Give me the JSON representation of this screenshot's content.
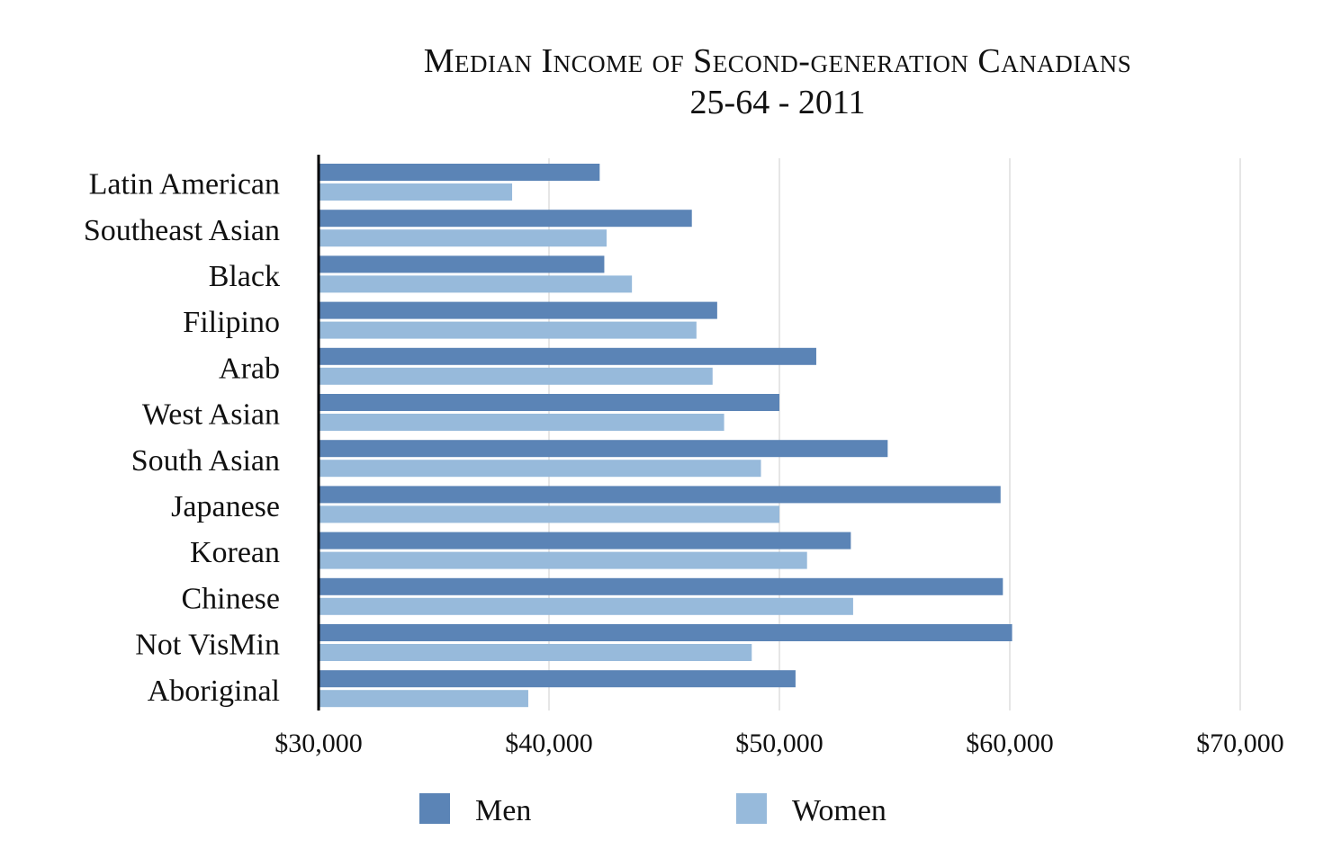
{
  "chart_data": {
    "type": "bar",
    "orientation": "horizontal",
    "title": "Median Income of Second-generation Canadians",
    "subtitle": "25-64 - 2011",
    "categories": [
      "Latin American",
      "Southeast Asian",
      "Black",
      "Filipino",
      "Arab",
      "West Asian",
      "South Asian",
      "Japanese",
      "Korean",
      "Chinese",
      "Not VisMin",
      "Aboriginal"
    ],
    "series": [
      {
        "name": "Men",
        "color": "#5b84b6",
        "values": [
          42200,
          46200,
          42400,
          47300,
          51600,
          50000,
          54700,
          59600,
          53100,
          59700,
          60100,
          50700
        ]
      },
      {
        "name": "Women",
        "color": "#97badb",
        "values": [
          38400,
          42500,
          43600,
          46400,
          47100,
          47600,
          49200,
          50000,
          51200,
          53200,
          48800,
          39100
        ]
      }
    ],
    "xlim": [
      30000,
      70000
    ],
    "xticks": [
      30000,
      40000,
      50000,
      60000,
      70000
    ],
    "xtick_labels": [
      "$30,000",
      "$40,000",
      "$50,000",
      "$60,000",
      "$70,000"
    ],
    "grid": true,
    "legend_position": "bottom"
  }
}
